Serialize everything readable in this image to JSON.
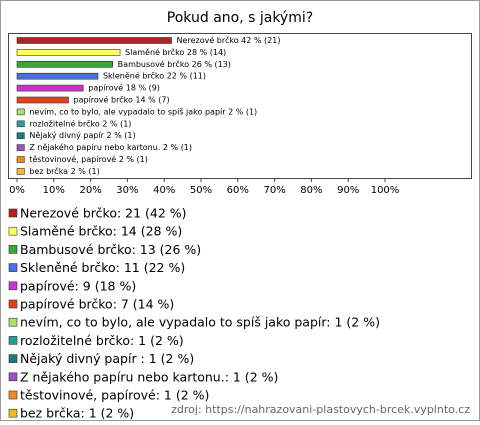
{
  "chart_data": {
    "type": "hbar",
    "title": "Pokud ano, s jakými?",
    "values": [
      42,
      28,
      26,
      22,
      18,
      14,
      2,
      2,
      2,
      2,
      2,
      2
    ],
    "value_labels": [
      "Nerezové brčko 42 % (21)",
      "Slaměné brčko 28 % (14)",
      "Bambusové brčko 26 % (13)",
      "Skleněné brčko 22 % (11)",
      "papírové 18 % (9)",
      "papírové brčko 14 % (7)",
      "nevím, co to bylo, ale vypadalo to spíš jako papír 2 % (1)",
      "rozložitelné brčko 2 % (1)",
      "Nějaký divný papír  2 % (1)",
      "Z nějakého papíru nebo kartonu. 2 % (1)",
      "těstovinové, papírové 2 % (1)",
      "bez brčka 2 % (1)"
    ],
    "legend_labels": [
      "Nerezové brčko: 21 (42 %)",
      "Slaměné brčko: 14 (28 %)",
      "Bambusové brčko: 13 (26 %)",
      "Skleněné brčko: 11 (22 %)",
      "papírové: 9 (18 %)",
      "papírové brčko: 7 (14 %)",
      "nevím, co to bylo, ale vypadalo to spíš jako papír: 1 (2 %)",
      "rozložitelné brčko: 1 (2 %)",
      "Nějaký divný papír : 1 (2 %)",
      "Z nějakého papíru nebo kartonu.: 1 (2 %)",
      "těstovinové, papírové: 1 (2 %)",
      "bez brčka: 1 (2 %)"
    ],
    "colors": [
      "#b22222",
      "#ffff66",
      "#33aa33",
      "#4a6ee0",
      "#cc33cc",
      "#e0441e",
      "#a8e070",
      "#2a9d8f",
      "#1f7a7a",
      "#9b4fc0",
      "#ee8822",
      "#eebb22"
    ],
    "xlim": [
      0,
      100
    ],
    "xticks": [
      {
        "value": 0,
        "label": "0%"
      },
      {
        "value": 10,
        "label": "10%"
      },
      {
        "value": 20,
        "label": "20%"
      },
      {
        "value": 30,
        "label": "30%"
      },
      {
        "value": 40,
        "label": "40%"
      },
      {
        "value": 50,
        "label": "50%"
      },
      {
        "value": 60,
        "label": "60%"
      },
      {
        "value": 70,
        "label": "70%"
      },
      {
        "value": 80,
        "label": "80%"
      },
      {
        "value": 90,
        "label": "90%"
      },
      {
        "value": 100,
        "label": "100%"
      }
    ],
    "source": "zdroj: https://nahrazovani-plastovych-brcek.vyplnto.cz"
  }
}
